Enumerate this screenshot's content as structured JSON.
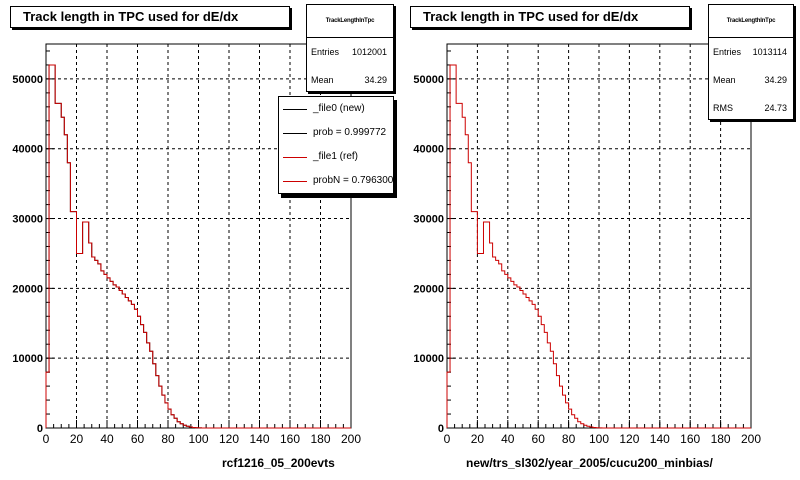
{
  "chart_data": [
    {
      "type": "histogram",
      "title": "Track length in TPC used for dE/dx",
      "xlabel": "rcf1216_05_200evts",
      "ylabel": "",
      "xlim": [
        0,
        200
      ],
      "ylim": [
        0,
        55000
      ],
      "x_ticks": [
        "0",
        "20",
        "40",
        "60",
        "80",
        "100",
        "120",
        "140",
        "160",
        "180",
        "200"
      ],
      "y_ticks": [
        "0",
        "10000",
        "20000",
        "30000",
        "40000",
        "50000"
      ],
      "grid": true,
      "bin_width": 2,
      "stats": {
        "name": "TrackLengthInTpc",
        "entries_label": "Entries",
        "entries": "1012001",
        "mean_label": "Mean",
        "mean": "34.29"
      },
      "legend": {
        "placement": "top-right",
        "entries": [
          {
            "label": "_file0 (new)",
            "color": "#000000"
          },
          {
            "label": "prob = 0.999772",
            "color": "#000000"
          },
          {
            "label": "_file1 (ref)",
            "color": "#cc0000"
          },
          {
            "label": "probN = 0.796300",
            "color": "#cc0000"
          }
        ]
      },
      "series": [
        {
          "color": "#000000",
          "values": [
            8000,
            52000,
            52000,
            46500,
            46500,
            44500,
            42000,
            38000,
            31000,
            31000,
            25000,
            25000,
            29500,
            29500,
            26500,
            24500,
            24000,
            23500,
            22500,
            22000,
            21500,
            21000,
            20500,
            20200,
            19700,
            19200,
            18700,
            18200,
            17700,
            17000,
            16000,
            14800,
            13700,
            12200,
            11000,
            9200,
            7500,
            6000,
            4700,
            3600,
            2700,
            1900,
            1400,
            900,
            600,
            400,
            250,
            150,
            80,
            40,
            20,
            0,
            0,
            0,
            0,
            0,
            0,
            0,
            0,
            0,
            0,
            0,
            0,
            0,
            0,
            0,
            0,
            0,
            0,
            0,
            0,
            0,
            0,
            0,
            0,
            0,
            0,
            0,
            0,
            0,
            0,
            0,
            0,
            0,
            0,
            0,
            0,
            0,
            0,
            0,
            0,
            0,
            0,
            0,
            0,
            0,
            0,
            0,
            0,
            0
          ]
        },
        {
          "color": "#cc0000",
          "values": [
            8000,
            52000,
            52000,
            46500,
            46500,
            44500,
            42000,
            38000,
            31000,
            31000,
            25000,
            25000,
            29500,
            29500,
            26500,
            24500,
            24000,
            23500,
            22500,
            22000,
            21500,
            21000,
            20500,
            20200,
            19700,
            19200,
            18700,
            18200,
            17700,
            17000,
            16000,
            14800,
            13700,
            12200,
            11000,
            9200,
            7500,
            6000,
            4700,
            3600,
            2700,
            1900,
            1400,
            900,
            600,
            400,
            250,
            150,
            80,
            40,
            20,
            0,
            0,
            0,
            0,
            0,
            0,
            0,
            0,
            0,
            0,
            0,
            0,
            0,
            0,
            0,
            0,
            0,
            0,
            0,
            0,
            0,
            0,
            0,
            0,
            0,
            0,
            0,
            0,
            0,
            0,
            0,
            0,
            0,
            0,
            0,
            0,
            0,
            0,
            0,
            0,
            0,
            0,
            0,
            0,
            0,
            0,
            0,
            0,
            0
          ]
        }
      ]
    },
    {
      "type": "histogram",
      "title": "Track length in TPC used for dE/dx",
      "xlabel": "new/trs_sl302/year_2005/cucu200_minbias/",
      "ylabel": "",
      "xlim": [
        0,
        200
      ],
      "ylim": [
        0,
        55000
      ],
      "x_ticks": [
        "0",
        "20",
        "40",
        "60",
        "80",
        "100",
        "120",
        "140",
        "160",
        "180",
        "200"
      ],
      "y_ticks": [
        "0",
        "10000",
        "20000",
        "30000",
        "40000",
        "50000"
      ],
      "grid": true,
      "bin_width": 2,
      "stats": {
        "name": "TrackLengthInTpc",
        "entries_label": "Entries",
        "entries": "1013114",
        "mean_label": "Mean",
        "mean": "34.29",
        "rms_label": "RMS",
        "rms": "24.73"
      },
      "series": [
        {
          "color": "#cc0000",
          "values": [
            8000,
            52000,
            52000,
            46500,
            46500,
            44500,
            42000,
            38000,
            31000,
            31000,
            25000,
            25000,
            29500,
            29500,
            26500,
            24500,
            24000,
            23500,
            22500,
            22000,
            21500,
            21000,
            20500,
            20200,
            19700,
            19200,
            18700,
            18200,
            17700,
            17000,
            16000,
            14800,
            13700,
            12200,
            11000,
            9200,
            7500,
            6000,
            4700,
            3600,
            2700,
            1900,
            1400,
            900,
            600,
            400,
            250,
            150,
            80,
            40,
            20,
            0,
            0,
            0,
            0,
            0,
            0,
            0,
            0,
            0,
            0,
            0,
            0,
            0,
            0,
            0,
            0,
            0,
            0,
            0,
            0,
            0,
            0,
            0,
            0,
            0,
            0,
            0,
            0,
            0,
            0,
            0,
            0,
            0,
            0,
            0,
            0,
            0,
            0,
            0,
            0,
            0,
            0,
            0,
            0,
            0,
            0,
            0,
            0,
            0
          ]
        }
      ]
    }
  ]
}
